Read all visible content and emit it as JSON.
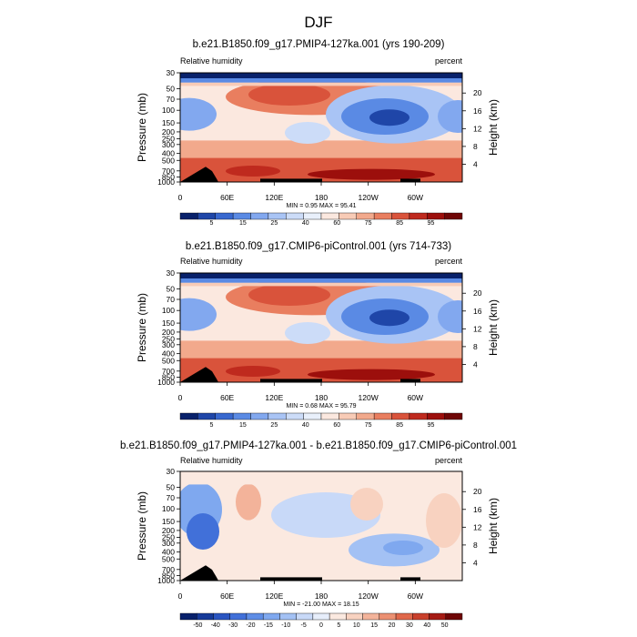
{
  "main_title": "DJF",
  "common": {
    "left_label": "Relative humidity",
    "right_label": "percent",
    "ylabel": "Pressure (mb)",
    "ylabel_right": "Height (km)",
    "pressure_ticks": [
      "30",
      "50",
      "70",
      "100",
      "150",
      "200",
      "250",
      "300",
      "400",
      "500",
      "700",
      "850",
      "1000"
    ],
    "height_ticks": [
      "20",
      "16",
      "12",
      "8",
      "4"
    ],
    "lon_ticks": [
      "0",
      "60E",
      "120E",
      "180",
      "120W",
      "60W"
    ]
  },
  "chart_data": [
    {
      "type": "heatmap",
      "title": "b.e21.B1850.f09_g17.PMIP4-127ka.001 (yrs 190-209)",
      "stats": "MIN =   0.95  MAX =  95.41",
      "min": 0.95,
      "max": 95.41,
      "colorbar_labels": [
        "5",
        "15",
        "25",
        "40",
        "60",
        "75",
        "85",
        "95"
      ],
      "colorbar_colors": [
        "#08216b",
        "#1f46a8",
        "#3868cf",
        "#5a8ae4",
        "#82a8ef",
        "#a9c4f5",
        "#ccdcf8",
        "#e9f0fb",
        "#fbe8df",
        "#f8cbb6",
        "#f2a98c",
        "#e97e5f",
        "#d9533b",
        "#bf2a1e",
        "#9c0f0c",
        "#6f0606"
      ]
    },
    {
      "type": "heatmap",
      "title": "b.e21.B1850.f09_g17.CMIP6-piControl.001 (yrs 714-733)",
      "stats": "MIN =   0.68  MAX =  95.79",
      "min": 0.68,
      "max": 95.79,
      "colorbar_labels": [
        "5",
        "15",
        "25",
        "40",
        "60",
        "75",
        "85",
        "95"
      ],
      "colorbar_colors": [
        "#08216b",
        "#1f46a8",
        "#3868cf",
        "#5a8ae4",
        "#82a8ef",
        "#a9c4f5",
        "#ccdcf8",
        "#e9f0fb",
        "#fbe8df",
        "#f8cbb6",
        "#f2a98c",
        "#e97e5f",
        "#d9533b",
        "#bf2a1e",
        "#9c0f0c",
        "#6f0606"
      ]
    },
    {
      "type": "heatmap",
      "title": "b.e21.B1850.f09_g17.PMIP4-127ka.001 - b.e21.B1850.f09_g17.CMIP6-piControl.001",
      "stats": "MIN = -21.00  MAX =  18.15",
      "min": -21.0,
      "max": 18.15,
      "colorbar_labels": [
        "-50",
        "-40",
        "-30",
        "-20",
        "-15",
        "-10",
        "-5",
        "0",
        "5",
        "10",
        "15",
        "20",
        "30",
        "40",
        "50"
      ],
      "colorbar_colors": [
        "#08216b",
        "#163a99",
        "#2a55c1",
        "#4170d9",
        "#5e8de6",
        "#7fa8ef",
        "#a3c1f4",
        "#c8d9f8",
        "#e7eefb",
        "#fbe9e0",
        "#f8d2c0",
        "#f3b39a",
        "#ec9072",
        "#e0684b",
        "#c9402c",
        "#a51b14",
        "#6f0606"
      ]
    }
  ]
}
